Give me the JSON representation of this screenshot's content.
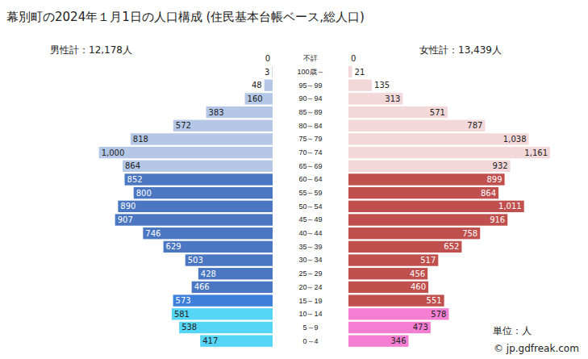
{
  "chart_data": {
    "type": "bar",
    "orientation": "horizontal",
    "title": "幕別町の2024年１月1日の人口構成 (住民基本台帳ベース,総人口)",
    "categories": [
      "不詳",
      "100歳～",
      "95～99",
      "90～94",
      "85～89",
      "80～84",
      "75～79",
      "70～74",
      "65～69",
      "60～64",
      "55～59",
      "50～54",
      "45～49",
      "40～44",
      "35～39",
      "30～34",
      "25～29",
      "20～24",
      "15～19",
      "10～14",
      "5～9",
      "0～4"
    ],
    "series": [
      {
        "name": "男性計：12,178人",
        "values": [
          0,
          3,
          48,
          160,
          383,
          572,
          818,
          1000,
          864,
          852,
          800,
          890,
          907,
          746,
          629,
          503,
          428,
          466,
          573,
          581,
          538,
          417
        ],
        "colors": [
          "#b4c7e7",
          "#b4c7e7",
          "#b4c7e7",
          "#b4c7e7",
          "#b4c7e7",
          "#b4c7e7",
          "#b4c7e7",
          "#b4c7e7",
          "#b4c7e7",
          "#4a76c2",
          "#4a76c2",
          "#4a76c2",
          "#4a76c2",
          "#4a76c2",
          "#4a76c2",
          "#4a76c2",
          "#4a76c2",
          "#4a76c2",
          "#3d7fdb",
          "#55d6f6",
          "#55d6f6",
          "#55d6f6"
        ]
      },
      {
        "name": "女性計：13,439人",
        "values": [
          0,
          21,
          135,
          313,
          571,
          787,
          1038,
          1161,
          932,
          899,
          864,
          1011,
          916,
          758,
          652,
          517,
          456,
          460,
          551,
          578,
          473,
          346
        ],
        "colors": [
          "#f2d8d9",
          "#f2d8d9",
          "#f2d8d9",
          "#f2d8d9",
          "#f2d8d9",
          "#f2d8d9",
          "#f2d8d9",
          "#f2d8d9",
          "#f2d8d9",
          "#c0504d",
          "#c0504d",
          "#c0504d",
          "#c0504d",
          "#c0504d",
          "#c0504d",
          "#c0504d",
          "#c0504d",
          "#c0504d",
          "#c0504d",
          "#f47fd2",
          "#f47fd2",
          "#f47fd2"
        ]
      }
    ],
    "annotations": [
      "単位：人",
      "© jp.gdfreak.com"
    ],
    "data_labels": true,
    "tick_labels": "y"
  }
}
